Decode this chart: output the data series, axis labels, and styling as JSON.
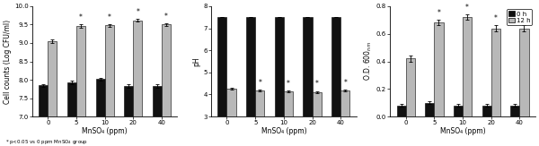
{
  "panel1": {
    "ylabel": "Cell counts (Log CFU/ml)",
    "xlabel": "MnSO₄ (ppm)",
    "categories": [
      0,
      5,
      10,
      20,
      40
    ],
    "bar0h": [
      7.85,
      7.93,
      8.02,
      7.83,
      7.83
    ],
    "bar12h": [
      9.05,
      9.46,
      9.48,
      9.62,
      9.5
    ],
    "err0h": [
      0.04,
      0.04,
      0.04,
      0.04,
      0.04
    ],
    "err12h": [
      0.04,
      0.04,
      0.04,
      0.04,
      0.04
    ],
    "ylim": [
      7.0,
      10.0
    ],
    "yticks": [
      7.0,
      7.5,
      8.0,
      8.5,
      9.0,
      9.5,
      10.0
    ],
    "sig12h": [
      false,
      true,
      true,
      true,
      true
    ],
    "sig0h": [
      false,
      false,
      false,
      false,
      false
    ]
  },
  "panel2": {
    "ylabel": "pH",
    "xlabel": "MnSO₄ (ppm)",
    "categories": [
      0,
      5,
      10,
      20,
      40
    ],
    "bar0h": [
      7.5,
      7.5,
      7.5,
      7.5,
      7.5
    ],
    "bar12h": [
      4.28,
      4.18,
      4.15,
      4.12,
      4.18
    ],
    "err0h": [
      0.0,
      0.0,
      0.0,
      0.0,
      0.0
    ],
    "err12h": [
      0.04,
      0.04,
      0.04,
      0.04,
      0.04
    ],
    "ylim": [
      3.0,
      8.0
    ],
    "yticks": [
      3,
      4,
      5,
      6,
      7,
      8
    ],
    "sig12h": [
      false,
      true,
      true,
      true,
      true
    ],
    "sig0h": [
      false,
      false,
      false,
      false,
      false
    ]
  },
  "panel3": {
    "ylabel": "O.D. 600$_{nm}$",
    "xlabel": "MnSO₄ (ppm)",
    "categories": [
      0,
      5,
      10,
      20,
      40
    ],
    "bar0h": [
      0.08,
      0.1,
      0.08,
      0.08,
      0.08
    ],
    "bar12h": [
      0.42,
      0.68,
      0.72,
      0.64,
      0.64
    ],
    "err0h": [
      0.01,
      0.01,
      0.01,
      0.01,
      0.01
    ],
    "err12h": [
      0.02,
      0.02,
      0.02,
      0.02,
      0.02
    ],
    "ylim": [
      0.0,
      0.8
    ],
    "yticks": [
      0.0,
      0.2,
      0.4,
      0.6,
      0.8
    ],
    "sig12h": [
      false,
      true,
      true,
      true,
      true
    ],
    "sig0h": [
      false,
      false,
      false,
      false,
      false
    ]
  },
  "color_0h": "#111111",
  "color_12h": "#b8b8b8",
  "bar_width": 0.32,
  "legend_labels": [
    "0 h",
    "12 h"
  ],
  "footnote": "* p<0.05 vs 0 ppm MnSO₄ group"
}
